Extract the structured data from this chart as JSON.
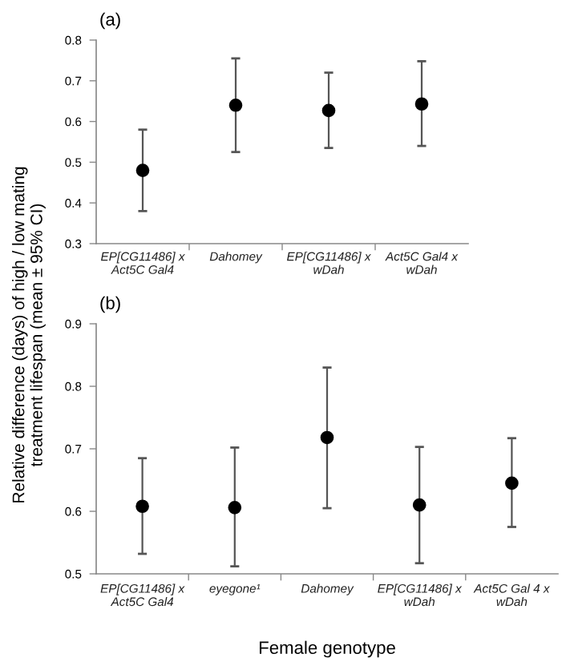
{
  "chart_data": [
    {
      "type": "scatter",
      "title": "(a)",
      "ylabel": "Relative difference (days) of high / low mating\ntreatment lifespan (mean ± 95% CI)",
      "categories": [
        "EP[CG11486] x\nAct5C Gal4",
        "Dahomey",
        "EP[CG11486] x\nwDah",
        "Act5C Gal4 x\nwDah"
      ],
      "series": [
        {
          "color": "#000000",
          "values": [
            0.48,
            0.64,
            0.627,
            0.643
          ],
          "errors": [
            [
              0.38,
              0.58
            ],
            [
              0.525,
              0.755
            ],
            [
              0.535,
              0.72
            ],
            [
              0.54,
              0.748
            ]
          ]
        }
      ],
      "ylim": [
        0.3,
        0.8
      ],
      "yticks": [
        0.3,
        0.4,
        0.5,
        0.6,
        0.7,
        0.8
      ],
      "marker": "circle",
      "grid": false,
      "legend": false
    },
    {
      "type": "scatter",
      "title": "(b)",
      "xlabel": "Female genotype",
      "categories": [
        "EP[CG11486] x\nAct5C Gal4",
        "eyegone¹",
        "Dahomey",
        "EP[CG11486] x\nwDah",
        "Act5C Gal 4 x\nwDah"
      ],
      "series": [
        {
          "color": "#000000",
          "values": [
            0.608,
            0.606,
            0.718,
            0.61,
            0.645
          ],
          "errors": [
            [
              0.532,
              0.685
            ],
            [
              0.512,
              0.702
            ],
            [
              0.605,
              0.83
            ],
            [
              0.517,
              0.703
            ],
            [
              0.575,
              0.717
            ]
          ]
        }
      ],
      "ylim": [
        0.5,
        0.9
      ],
      "yticks": [
        0.5,
        0.6,
        0.7,
        0.8,
        0.9
      ],
      "marker": "circle",
      "grid": false,
      "legend": false
    }
  ]
}
